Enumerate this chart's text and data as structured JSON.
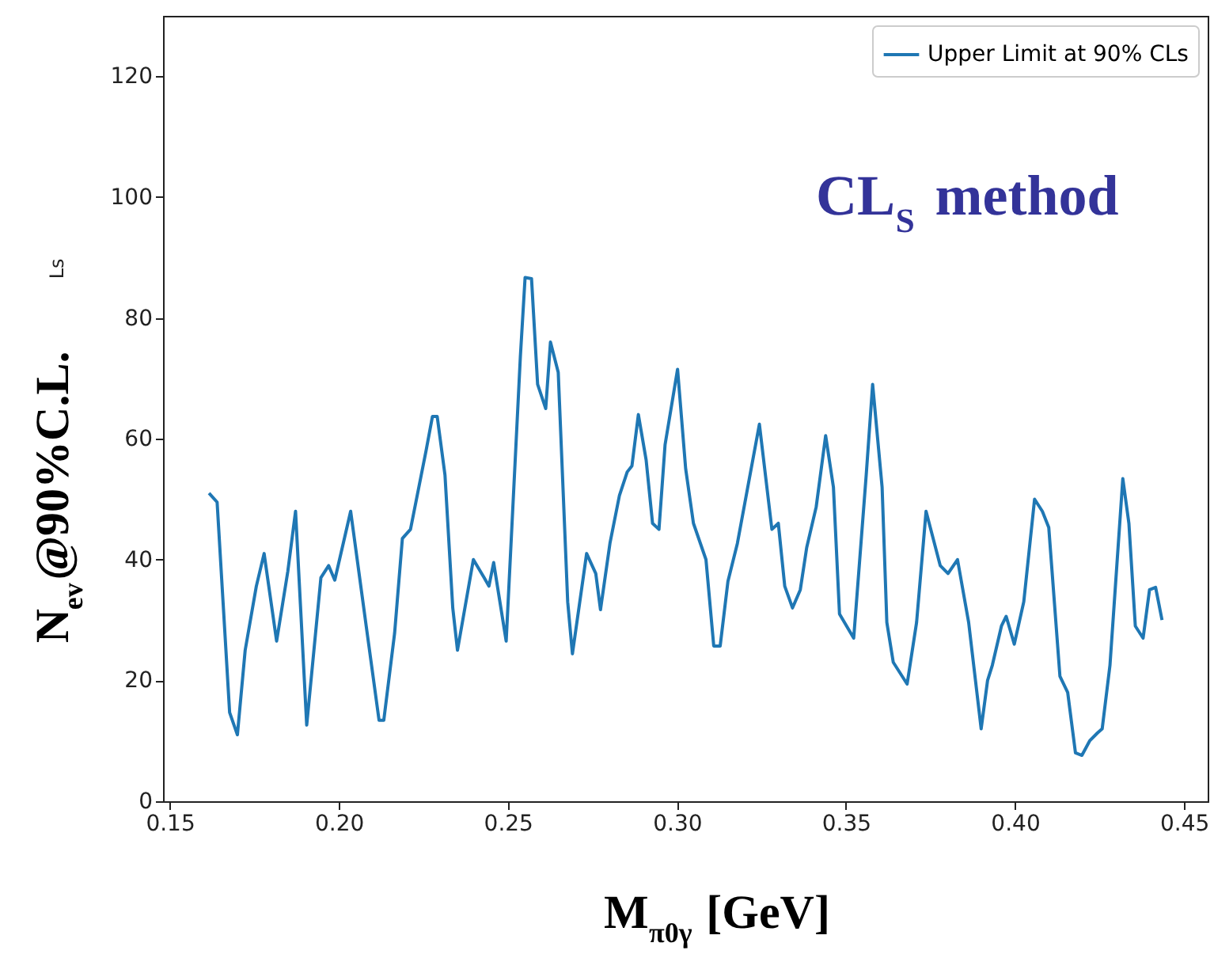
{
  "chart_data": {
    "type": "line",
    "xlabel": "M$_{π0γ}$ [GeV]",
    "ylabel": "N$_{ev}$@90%C.L.",
    "annotations": [
      "CL$_{S}$ method",
      "Ls"
    ],
    "xlim": [
      0.148,
      0.457
    ],
    "ylim": [
      0,
      130
    ],
    "xticks": [
      {
        "value": 0.15,
        "label": "0.15"
      },
      {
        "value": 0.2,
        "label": "0.20"
      },
      {
        "value": 0.25,
        "label": "0.25"
      },
      {
        "value": 0.3,
        "label": "0.30"
      },
      {
        "value": 0.35,
        "label": "0.35"
      },
      {
        "value": 0.4,
        "label": "0.40"
      },
      {
        "value": 0.45,
        "label": "0.45"
      }
    ],
    "yticks": [
      0,
      20,
      40,
      60,
      80,
      100,
      120
    ],
    "grid": false,
    "legend": "top right",
    "marker": "none",
    "line_style": "solid",
    "series": [
      {
        "name": "Upper Limit at 90% CLs",
        "color": "#1f77b4",
        "x": [
          0.1616,
          0.164,
          0.1677,
          0.17,
          0.1723,
          0.1756,
          0.1779,
          0.1816,
          0.1849,
          0.1872,
          0.1905,
          0.1947,
          0.197,
          0.1988,
          0.2035,
          0.2081,
          0.2119,
          0.2133,
          0.2165,
          0.2188,
          0.2212,
          0.2258,
          0.2277,
          0.2291,
          0.2314,
          0.2337,
          0.2351,
          0.2398,
          0.243,
          0.2444,
          0.2458,
          0.2495,
          0.2537,
          0.2551,
          0.257,
          0.2588,
          0.2612,
          0.2626,
          0.2649,
          0.2677,
          0.2691,
          0.2733,
          0.276,
          0.2774,
          0.2802,
          0.283,
          0.2853,
          0.2867,
          0.2886,
          0.2909,
          0.2928,
          0.2947,
          0.2965,
          0.3002,
          0.3026,
          0.3049,
          0.3086,
          0.3109,
          0.3128,
          0.3151,
          0.3179,
          0.3244,
          0.3281,
          0.33,
          0.3319,
          0.3342,
          0.3365,
          0.3384,
          0.3412,
          0.344,
          0.3463,
          0.3481,
          0.3523,
          0.356,
          0.3579,
          0.3607,
          0.3621,
          0.364,
          0.3681,
          0.3709,
          0.3737,
          0.3779,
          0.3802,
          0.383,
          0.3863,
          0.39,
          0.3919,
          0.3933,
          0.396,
          0.3974,
          0.3998,
          0.4026,
          0.4058,
          0.4081,
          0.41,
          0.4133,
          0.4156,
          0.4179,
          0.4198,
          0.4221,
          0.4244,
          0.4258,
          0.4281,
          0.4319,
          0.4337,
          0.4356,
          0.4379,
          0.4398,
          0.4416,
          0.4435
        ],
        "values": [
          51,
          49.5,
          14.7,
          11,
          25,
          35.6,
          41,
          26.5,
          38,
          48,
          12.6,
          37,
          39,
          36.6,
          48,
          29,
          13.4,
          13.4,
          27.8,
          43.5,
          45,
          58,
          63.7,
          63.7,
          54,
          32,
          25,
          40,
          37,
          35.6,
          39.5,
          26.5,
          73.6,
          86.7,
          86.5,
          69,
          65,
          76,
          71,
          33,
          24.4,
          41,
          37.7,
          31.7,
          42.7,
          50.6,
          54.5,
          55.5,
          64,
          56.5,
          46,
          45,
          59,
          71.5,
          55,
          46,
          40,
          25.7,
          25.7,
          36.4,
          42.7,
          62.4,
          45,
          46,
          35.6,
          32,
          35,
          42,
          48.7,
          60.5,
          52,
          31,
          27,
          54,
          69,
          52,
          29.6,
          23,
          19.4,
          29.6,
          48,
          39,
          37.7,
          40,
          29.6,
          12,
          20,
          22.5,
          29,
          30.6,
          26,
          33,
          50,
          48,
          45.3,
          20.7,
          18,
          8,
          7.6,
          10,
          11.3,
          12,
          22.5,
          53.4,
          46,
          29,
          27,
          35,
          35.4,
          30
        ]
      }
    ]
  }
}
